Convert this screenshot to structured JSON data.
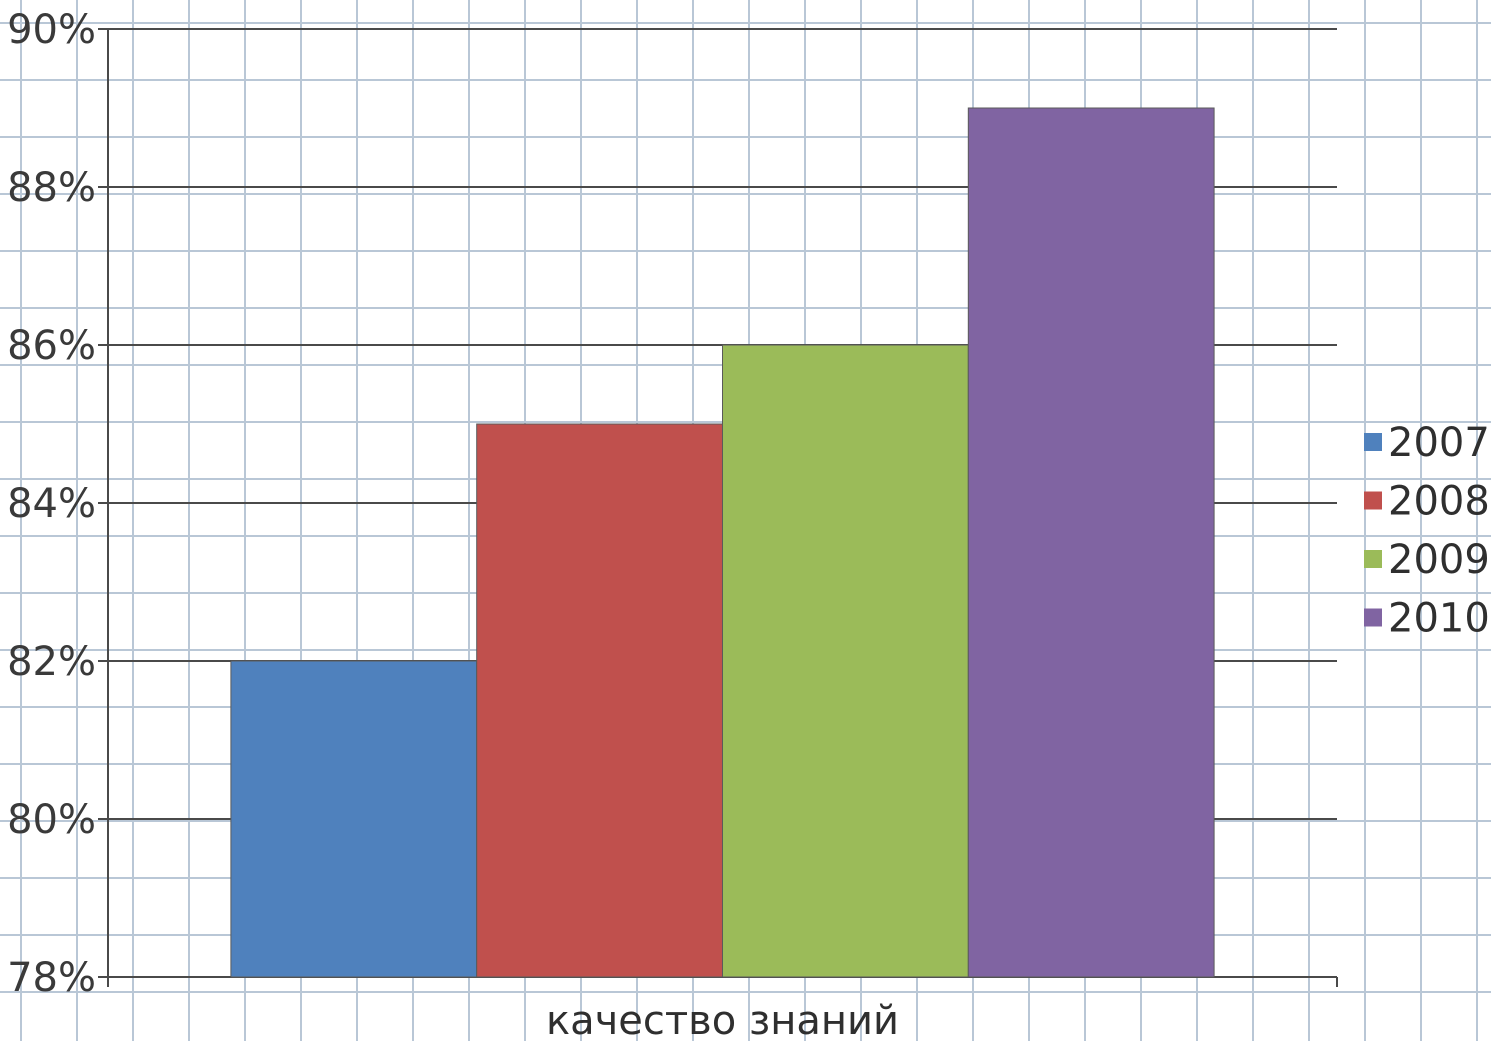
{
  "chart_data": {
    "type": "bar",
    "categories": [
      "качество знаний"
    ],
    "series": [
      {
        "name": "2007",
        "values": [
          82
        ],
        "color": "#4f81bd"
      },
      {
        "name": "2008",
        "values": [
          85
        ],
        "color": "#c0504d"
      },
      {
        "name": "2009",
        "values": [
          86
        ],
        "color": "#9bbb59"
      },
      {
        "name": "2010",
        "values": [
          89
        ],
        "color": "#8064a2"
      }
    ],
    "yticks": [
      "78%",
      "80%",
      "82%",
      "84%",
      "86%",
      "88%",
      "90%"
    ],
    "ylim": [
      78,
      90
    ],
    "grid": true,
    "legend_position": "right",
    "title": "",
    "xlabel": "",
    "ylabel": ""
  }
}
